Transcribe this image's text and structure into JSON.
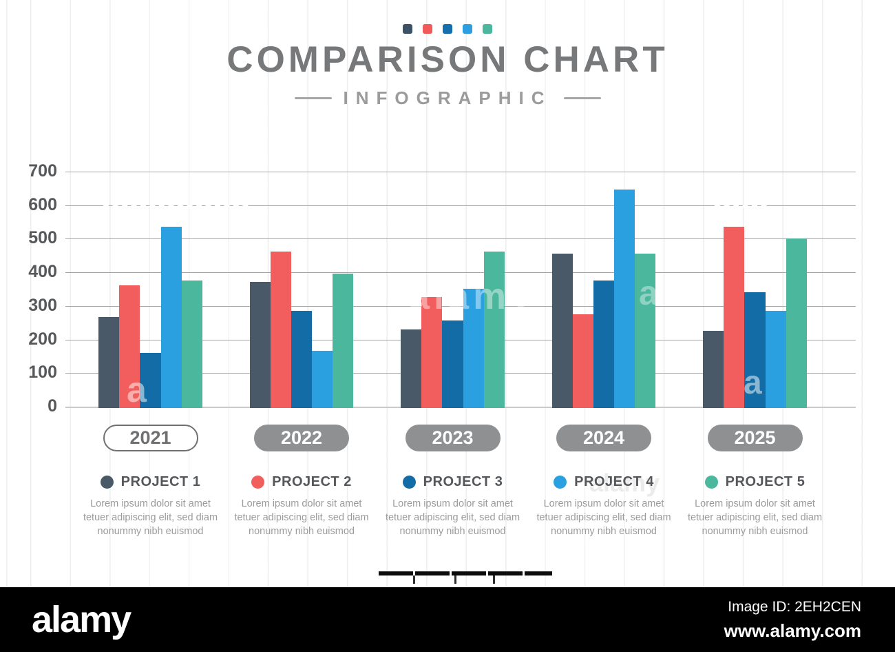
{
  "header": {
    "title": "COMPARISON CHART",
    "subtitle": "INFOGRAPHIC",
    "palette_squares": [
      "#3d5266",
      "#f15a5a",
      "#1470ad",
      "#2d9fe1",
      "#4cb79e"
    ]
  },
  "chart_data": {
    "type": "bar",
    "title": "COMPARISON CHART",
    "subtitle": "INFOGRAPHIC",
    "categories": [
      "2021",
      "2022",
      "2023",
      "2024",
      "2025"
    ],
    "series": [
      {
        "name": "PROJECT 1",
        "color": "#4a5967",
        "values": [
          270,
          375,
          235,
          460,
          230
        ]
      },
      {
        "name": "PROJECT 2",
        "color": "#f25d5d",
        "values": [
          365,
          465,
          330,
          280,
          540
        ]
      },
      {
        "name": "PROJECT 3",
        "color": "#136ca6",
        "values": [
          165,
          290,
          260,
          380,
          345
        ]
      },
      {
        "name": "PROJECT 4",
        "color": "#2ba0e0",
        "values": [
          540,
          170,
          355,
          650,
          290
        ]
      },
      {
        "name": "PROJECT 5",
        "color": "#4bb79d",
        "values": [
          380,
          400,
          465,
          460,
          505
        ]
      }
    ],
    "ylim": [
      0,
      700
    ],
    "yticks": [
      0,
      100,
      200,
      300,
      400,
      500,
      600,
      700
    ],
    "grid": "horizontal",
    "legend_position": "bottom"
  },
  "years": {
    "outlined_index": 0
  },
  "legend": {
    "description": "Lorem ipsum dolor sit amet\ntetuer adipiscing elit, sed diam\nnonummy nibh euismod"
  },
  "watermark": {
    "brand": "alamy",
    "letter": "a"
  },
  "footer": {
    "logo": "alamy",
    "image_id": "Image ID: 2EH2CEN",
    "url": "www.alamy.com"
  }
}
